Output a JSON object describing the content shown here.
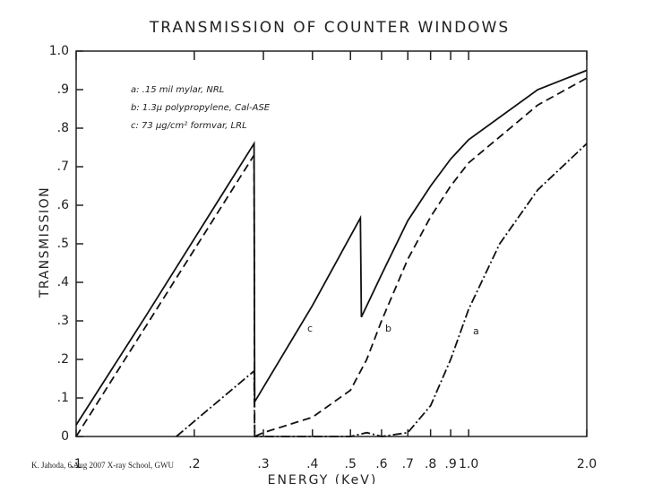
{
  "chart_data": {
    "type": "line",
    "title": "TRANSMISSION OF COUNTER WINDOWS",
    "x_label": "ENERGY (KeV)",
    "y_label": "TRANSMISSION",
    "legend_text": [
      "a: .15 mil mylar, NRL",
      "b: 1.3μ polypropylene, Cal-ASE",
      "c: 73 μg/cm² formvar, LRL"
    ],
    "footer": "K. Jahoda, 6 Aug 2007 X-ray School, GWU",
    "xscale": "log",
    "xlim": [
      0.1,
      2.0
    ],
    "xticks": [
      {
        "value": 0.1,
        "label": ".1"
      },
      {
        "value": 0.2,
        "label": ".2"
      },
      {
        "value": 0.3,
        "label": ".3"
      },
      {
        "value": 0.4,
        "label": ".4"
      },
      {
        "value": 0.5,
        "label": ".5"
      },
      {
        "value": 0.6,
        "label": ".6"
      },
      {
        "value": 0.7,
        "label": ".7"
      },
      {
        "value": 0.8,
        "label": ".8"
      },
      {
        "value": 0.9,
        "label": ".9"
      },
      {
        "value": 1.0,
        "label": "1.0"
      },
      {
        "value": 2.0,
        "label": "2.0"
      }
    ],
    "ylim": [
      0,
      1.0
    ],
    "yticks": [
      0,
      {
        "value": 0.1,
        "label": ".1"
      },
      {
        "value": 0.2,
        "label": ".2"
      },
      {
        "value": 0.3,
        "label": ".3"
      },
      {
        "value": 0.4,
        "label": ".4"
      },
      {
        "value": 0.5,
        "label": ".5"
      },
      {
        "value": 0.6,
        "label": ".6"
      },
      {
        "value": 0.7,
        "label": ".7"
      },
      {
        "value": 0.8,
        "label": ".8"
      },
      {
        "value": 0.9,
        "label": ".9"
      },
      {
        "value": 1.0,
        "label": "1.0"
      }
    ],
    "grid": false,
    "series": [
      {
        "name": "a",
        "color": "#111111",
        "style": "dashdot",
        "x": [
          0.18,
          0.284,
          0.285,
          0.5,
          0.55,
          0.6,
          0.7,
          0.8,
          0.9,
          1.0,
          1.2,
          1.5,
          2.0
        ],
        "values": [
          0.0,
          0.17,
          0.0,
          0.0,
          0.01,
          0.0,
          0.01,
          0.08,
          0.2,
          0.33,
          0.5,
          0.64,
          0.76
        ]
      },
      {
        "name": "b",
        "color": "#111111",
        "style": "dashed",
        "x": [
          0.1,
          0.284,
          0.285,
          0.3,
          0.4,
          0.5,
          0.55,
          0.6,
          0.7,
          0.8,
          0.9,
          1.0,
          1.5,
          2.0
        ],
        "values": [
          0.0,
          0.73,
          0.0,
          0.01,
          0.05,
          0.12,
          0.2,
          0.3,
          0.46,
          0.57,
          0.65,
          0.71,
          0.86,
          0.93
        ]
      },
      {
        "name": "c",
        "color": "#111111",
        "style": "solid",
        "x": [
          0.1,
          0.15,
          0.284,
          0.285,
          0.4,
          0.53,
          0.533,
          0.6,
          0.7,
          0.8,
          0.9,
          1.0,
          1.5,
          2.0
        ],
        "values": [
          0.03,
          0.31,
          0.76,
          0.09,
          0.34,
          0.567,
          0.31,
          0.42,
          0.56,
          0.65,
          0.72,
          0.77,
          0.9,
          0.95
        ]
      }
    ]
  }
}
